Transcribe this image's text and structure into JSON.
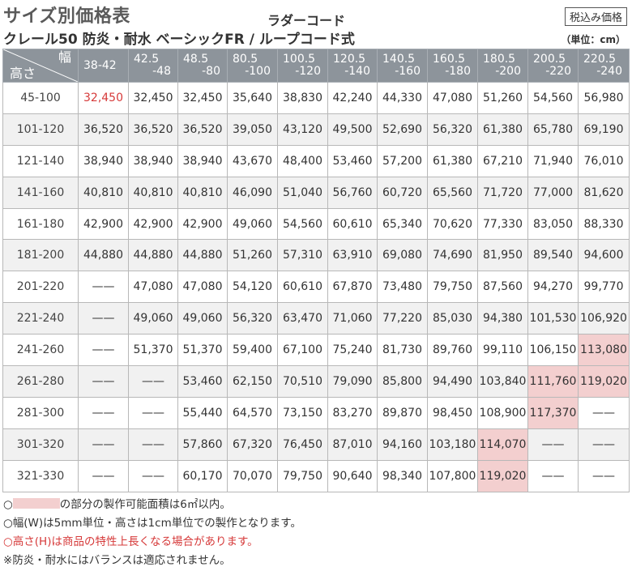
{
  "header": {
    "title": "サイズ別価格表",
    "subtitle": "クレール50 防炎・耐水 ベーシックFR / ループコード式",
    "cord_type": "ラダーコード",
    "tax_badge": "税込み価格",
    "unit": "（単位：cm）"
  },
  "table": {
    "corner_width_label": "幅",
    "corner_height_label": "高さ",
    "columns": [
      {
        "line1": "38-42",
        "line2": ""
      },
      {
        "line1": "42.5",
        "line2": "-48"
      },
      {
        "line1": "48.5",
        "line2": "-80"
      },
      {
        "line1": "80.5",
        "line2": "-100"
      },
      {
        "line1": "100.5",
        "line2": "-120"
      },
      {
        "line1": "120.5",
        "line2": "-140"
      },
      {
        "line1": "140.5",
        "line2": "-160"
      },
      {
        "line1": "160.5",
        "line2": "-180"
      },
      {
        "line1": "180.5",
        "line2": "-200"
      },
      {
        "line1": "200.5",
        "line2": "-220"
      },
      {
        "line1": "220.5",
        "line2": "-240"
      }
    ],
    "rows": [
      {
        "height": "45-100",
        "prices": [
          "32,450",
          "32,450",
          "32,450",
          "35,640",
          "38,830",
          "42,240",
          "44,330",
          "47,080",
          "51,260",
          "54,560",
          "56,980"
        ]
      },
      {
        "height": "101-120",
        "prices": [
          "36,520",
          "36,520",
          "36,520",
          "39,050",
          "43,120",
          "49,500",
          "52,690",
          "56,320",
          "61,380",
          "65,780",
          "69,190"
        ]
      },
      {
        "height": "121-140",
        "prices": [
          "38,940",
          "38,940",
          "38,940",
          "43,670",
          "48,400",
          "53,460",
          "57,200",
          "61,380",
          "67,210",
          "71,940",
          "76,010"
        ]
      },
      {
        "height": "141-160",
        "prices": [
          "40,810",
          "40,810",
          "40,810",
          "46,090",
          "51,040",
          "56,760",
          "60,720",
          "65,560",
          "71,720",
          "77,000",
          "81,620"
        ]
      },
      {
        "height": "161-180",
        "prices": [
          "42,900",
          "42,900",
          "42,900",
          "49,060",
          "54,560",
          "60,610",
          "65,340",
          "70,620",
          "77,330",
          "83,050",
          "88,330"
        ]
      },
      {
        "height": "181-200",
        "prices": [
          "44,880",
          "44,880",
          "44,880",
          "51,260",
          "57,310",
          "63,910",
          "69,080",
          "74,690",
          "81,950",
          "89,540",
          "94,600"
        ]
      },
      {
        "height": "201-220",
        "prices": [
          "——",
          "47,080",
          "47,080",
          "54,120",
          "60,610",
          "67,870",
          "73,480",
          "79,750",
          "87,560",
          "94,270",
          "99,770"
        ]
      },
      {
        "height": "221-240",
        "prices": [
          "——",
          "49,060",
          "49,060",
          "56,320",
          "63,470",
          "71,060",
          "77,220",
          "85,030",
          "94,380",
          "101,530",
          "106,920"
        ]
      },
      {
        "height": "241-260",
        "prices": [
          "——",
          "51,370",
          "51,370",
          "59,400",
          "67,100",
          "75,240",
          "81,730",
          "89,760",
          "99,110",
          "106,150",
          "113,080"
        ]
      },
      {
        "height": "261-280",
        "prices": [
          "——",
          "——",
          "53,460",
          "62,150",
          "70,510",
          "79,090",
          "85,800",
          "94,490",
          "103,840",
          "111,760",
          "119,020"
        ]
      },
      {
        "height": "281-300",
        "prices": [
          "——",
          "——",
          "55,440",
          "64,570",
          "73,150",
          "83,270",
          "89,870",
          "98,450",
          "108,900",
          "117,370",
          "——"
        ]
      },
      {
        "height": "301-320",
        "prices": [
          "——",
          "——",
          "57,860",
          "67,320",
          "76,450",
          "87,010",
          "94,160",
          "103,180",
          "114,070",
          "——",
          "——"
        ]
      },
      {
        "height": "321-330",
        "prices": [
          "——",
          "——",
          "60,170",
          "70,070",
          "79,750",
          "90,640",
          "98,340",
          "107,800",
          "119,020",
          "——",
          "——"
        ]
      }
    ],
    "highlight_color": "#f3cfcf",
    "red_text_color": "#d63a3a",
    "header_color": "#8d949b",
    "pink_cells": [
      [
        8,
        10
      ],
      [
        9,
        9
      ],
      [
        9,
        10
      ],
      [
        10,
        9
      ],
      [
        11,
        8
      ],
      [
        12,
        8
      ]
    ],
    "red_cells": [
      [
        0,
        0
      ]
    ]
  },
  "notes": [
    {
      "bullet": "○",
      "before": "",
      "after": "の部分の製作可能面積は6㎡以内。",
      "swatch": true,
      "red": false
    },
    {
      "bullet": "○",
      "before": "幅(W)は5mm単位・高さは1cm単位での製作となります。",
      "after": "",
      "swatch": false,
      "red": false
    },
    {
      "bullet": "○",
      "before": "高さ(H)は商品の特性上長くなる場合があります。",
      "after": "",
      "swatch": false,
      "red": true
    },
    {
      "bullet": "※",
      "before": "防炎・耐水にはバランスは適応されません。",
      "after": "",
      "swatch": false,
      "red": false
    }
  ]
}
